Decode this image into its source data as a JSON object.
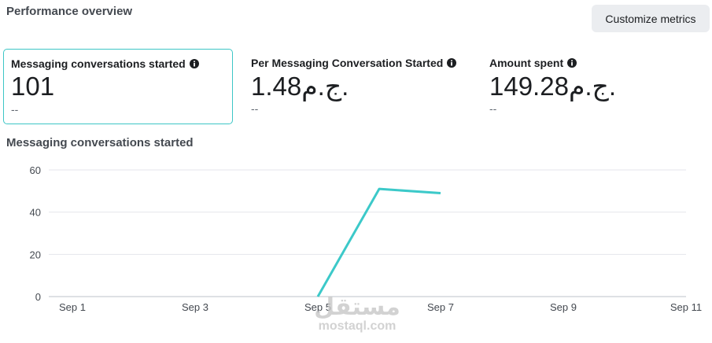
{
  "header": {
    "title": "Performance overview",
    "button": "Customize metrics"
  },
  "metrics": [
    {
      "label": "Messaging conversations started",
      "value": "101",
      "comparison": "--"
    },
    {
      "label": "Per Messaging Conversation Started",
      "value": "1.48ج.م.",
      "comparison": "--"
    },
    {
      "label": "Amount spent",
      "value": "149.28ج.م.",
      "comparison": "--"
    }
  ],
  "chart_data": {
    "type": "line",
    "title": "Messaging conversations started",
    "categories": [
      "Sep 1",
      null,
      "Sep 3",
      null,
      "Sep 5",
      null,
      "Sep 7",
      null,
      "Sep 9",
      null,
      "Sep 11"
    ],
    "series": [
      {
        "name": "Messaging conversations started",
        "color": "#3cc9c9",
        "values": [
          null,
          null,
          null,
          null,
          0,
          51,
          49,
          null,
          null,
          null,
          null
        ]
      }
    ],
    "ylim": [
      0,
      60
    ],
    "yticks": [
      0,
      20,
      40,
      60
    ],
    "grid": true,
    "legend": false
  },
  "watermark": {
    "arabic": "مستقل",
    "latin": "mostaql.com"
  }
}
